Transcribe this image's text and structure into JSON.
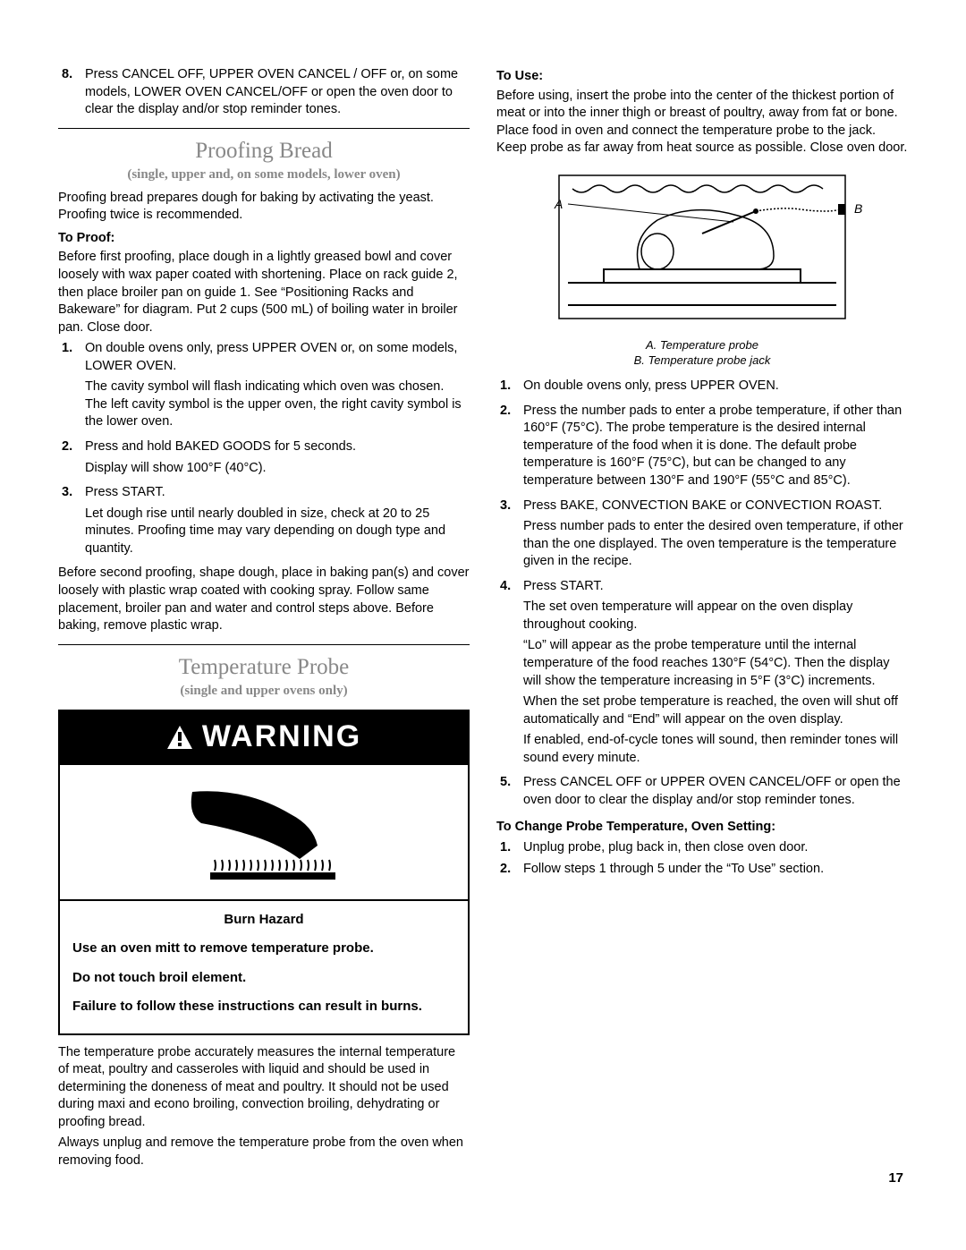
{
  "left": {
    "step8": {
      "num": "8.",
      "text": "Press CANCEL OFF, UPPER OVEN CANCEL / OFF or, on some models, LOWER OVEN CANCEL/OFF or open the oven door to clear the display and/or stop reminder tones."
    },
    "proofing": {
      "title": "Proofing Bread",
      "subtitle": "(single, upper and, on some models, lower oven)",
      "intro": "Proofing bread prepares dough for baking by activating the yeast. Proofing twice is recommended.",
      "toProofLabel": "To Proof:",
      "toProofIntro": "Before first proofing, place dough in a lightly greased bowl and cover loosely with wax paper coated with shortening. Place on rack guide 2, then place broiler pan on guide 1. See “Positioning Racks and Bakeware” for diagram. Put 2 cups (500 mL) of boiling water in broiler pan. Close door.",
      "steps": [
        {
          "num": "1.",
          "body": "On double ovens only, press UPPER OVEN or, on some models, LOWER OVEN.",
          "sub": "The cavity symbol will flash indicating which oven was chosen. The left cavity symbol is the upper oven, the right cavity symbol is the lower oven."
        },
        {
          "num": "2.",
          "body": "Press and hold BAKED GOODS for 5 seconds.",
          "sub": "Display will show 100°F (40°C)."
        },
        {
          "num": "3.",
          "body": "Press START.",
          "sub": "Let dough rise until nearly doubled in size, check at 20 to 25 minutes. Proofing time may vary depending on dough type and quantity."
        }
      ],
      "after": "Before second proofing, shape dough, place in baking pan(s) and cover loosely with plastic wrap coated with cooking spray. Follow same placement, broiler pan and water and control steps above. Before baking, remove plastic wrap."
    },
    "tempProbe": {
      "title": "Temperature Probe",
      "subtitle": "(single and upper ovens only)",
      "warningLabel": "WARNING",
      "hazardTitle": "Burn Hazard",
      "hazardLines": [
        "Use an oven mitt to remove temperature probe.",
        "Do not touch broil element.",
        "Failure to follow these instructions can result in burns."
      ],
      "para1": "The temperature probe accurately measures the internal temperature of meat, poultry and casseroles with liquid and should be used in determining the doneness of meat and poultry. It should not be used during maxi and econo broiling, convection broiling, dehydrating or proofing bread.",
      "para2": "Always unplug and remove the temperature probe from the oven when removing food."
    }
  },
  "right": {
    "toUseLabel": "To Use:",
    "toUseIntro": "Before using, insert the probe into the center of the thickest portion of meat or into the inner thigh or breast of poultry, away from fat or bone. Place food in oven and connect the temperature probe to the jack. Keep probe as far away from heat source as possible. Close oven door.",
    "labelA": "A",
    "labelB": "B",
    "captionA": "A. Temperature probe",
    "captionB": "B. Temperature probe jack",
    "steps": [
      {
        "num": "1.",
        "body": "On double ovens only, press UPPER OVEN.",
        "subs": []
      },
      {
        "num": "2.",
        "body": "Press the number pads to enter a probe temperature, if other than 160°F (75°C). The probe temperature is the desired internal temperature of the food when it is done. The default probe temperature is 160°F (75°C), but can be changed to any temperature between 130°F and 190°F (55°C and 85°C).",
        "subs": []
      },
      {
        "num": "3.",
        "body": "Press BAKE, CONVECTION BAKE or CONVECTION ROAST.",
        "subs": [
          "Press number pads to enter the desired oven temperature, if other than the one displayed. The oven temperature is the temperature given in the recipe."
        ]
      },
      {
        "num": "4.",
        "body": "Press START.",
        "subs": [
          "The set oven temperature will appear on the oven display throughout cooking.",
          "“Lo” will appear as the probe temperature until the internal temperature of the food reaches 130°F (54°C). Then the display will show the temperature increasing in 5°F (3°C) increments.",
          "When the set probe temperature is reached, the oven will shut off automatically and “End” will appear on the oven display.",
          "If enabled, end-of-cycle tones will sound, then reminder tones will sound every minute."
        ]
      },
      {
        "num": "5.",
        "body": "Press CANCEL OFF or UPPER OVEN CANCEL/OFF or open the oven door to clear the display and/or stop reminder tones.",
        "subs": []
      }
    ],
    "changeLabel": "To Change Probe Temperature, Oven Setting:",
    "changeSteps": [
      {
        "num": "1.",
        "body": "Unplug probe, plug back in, then close oven door."
      },
      {
        "num": "2.",
        "body": "Follow steps 1 through 5 under the “To Use” section."
      }
    ]
  },
  "pageNumber": "17"
}
